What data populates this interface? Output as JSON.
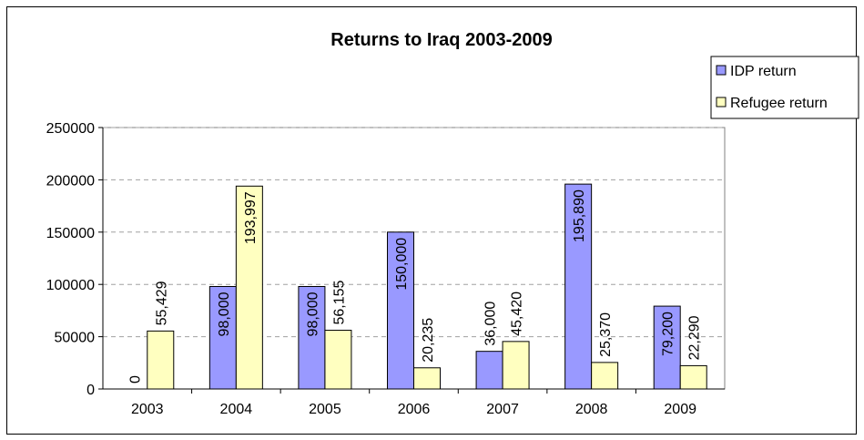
{
  "chart_data": {
    "type": "bar",
    "title": "Returns to Iraq 2003-2009",
    "xlabel": "",
    "ylabel": "",
    "categories": [
      "2003",
      "2004",
      "2005",
      "2006",
      "2007",
      "2008",
      "2009"
    ],
    "series": [
      {
        "name": "IDP return",
        "color": "#9999ff",
        "values": [
          0,
          98000,
          98000,
          150000,
          36000,
          195890,
          79200
        ],
        "labels": [
          "0",
          "98,000",
          "98,000",
          "150,000",
          "36,000",
          "195,890",
          "79,200"
        ]
      },
      {
        "name": "Refugee return",
        "color": "#ffffc0",
        "values": [
          55429,
          193997,
          56155,
          20235,
          45420,
          25370,
          22290
        ],
        "labels": [
          "55,429",
          "193,997",
          "56,155",
          "20,235",
          "45,420",
          "25,370",
          "22,290"
        ]
      }
    ],
    "ylim": [
      0,
      250000
    ],
    "yticks": [
      0,
      50000,
      100000,
      150000,
      200000,
      250000
    ],
    "ytick_labels": [
      "0",
      "50000",
      "100000",
      "150000",
      "200000",
      "250000"
    ],
    "grid": true,
    "legend_position": "top-right"
  }
}
